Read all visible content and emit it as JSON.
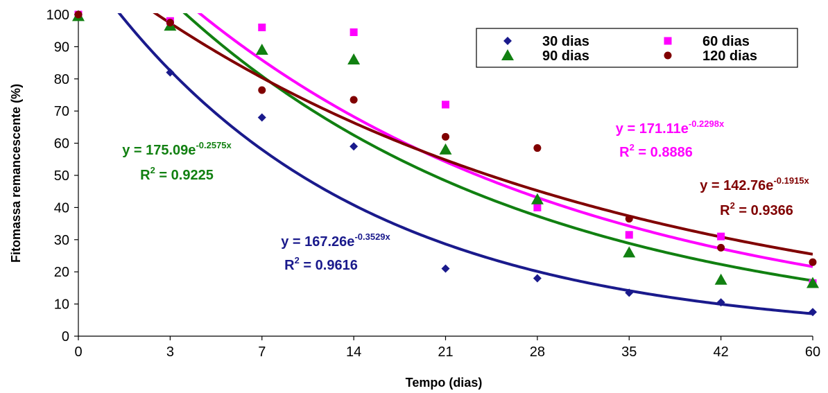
{
  "chart_data": {
    "type": "scatter",
    "xlabel": "Tempo (dias)",
    "ylabel": "Fitomassa remancescente (%)",
    "categories": [
      "0",
      "3",
      "7",
      "14",
      "21",
      "28",
      "35",
      "42",
      "60"
    ],
    "ylim": [
      0,
      100
    ],
    "yticks": [
      "0",
      "10",
      "20",
      "30",
      "40",
      "50",
      "60",
      "70",
      "80",
      "90",
      "100"
    ],
    "series": [
      {
        "name": "30 dias",
        "color": "#1a1a8c",
        "marker": "diamond",
        "values": [
          100,
          82,
          68,
          59,
          21,
          18,
          13.5,
          10.5,
          7.5
        ],
        "fit": {
          "a": 167.26,
          "b": -0.3529
        },
        "equation": {
          "prefix": "y = 167.26e",
          "exp": "-0.3529x",
          "r2_prefix": "R",
          "r2_value": " = 0.9616"
        }
      },
      {
        "name": "60 dias",
        "color": "#ff00ff",
        "marker": "square",
        "values": [
          100,
          98,
          96,
          94.5,
          72,
          40,
          31.5,
          31,
          16.5
        ],
        "fit": {
          "a": 171.11,
          "b": -0.2298
        },
        "equation": {
          "prefix": "y = 171.11e",
          "exp": "-0.2298x",
          "r2_prefix": "R",
          "r2_value": " = 0.8886"
        }
      },
      {
        "name": "90 dias",
        "color": "#118011",
        "marker": "triangle",
        "values": [
          99.5,
          96.5,
          89,
          86,
          58,
          42.5,
          26,
          17.5,
          16.5
        ],
        "fit": {
          "a": 175.09,
          "b": -0.2575
        },
        "equation": {
          "prefix": "y = 175.09e",
          "exp": "-0.2575x",
          "r2_prefix": "R",
          "r2_value": " = 0.9225"
        }
      },
      {
        "name": "120 dias",
        "color": "#800000",
        "marker": "circle",
        "values": [
          100,
          97.5,
          76.5,
          73.5,
          62,
          58.5,
          36.5,
          27.5,
          23
        ],
        "fit": {
          "a": 142.76,
          "b": -0.1915
        },
        "equation": {
          "prefix": "y = 142.76e",
          "exp": "-0.1915x",
          "r2_prefix": "R",
          "r2_value": " = 0.9366"
        }
      }
    ],
    "legend_placement": "top-right",
    "grid": false
  }
}
